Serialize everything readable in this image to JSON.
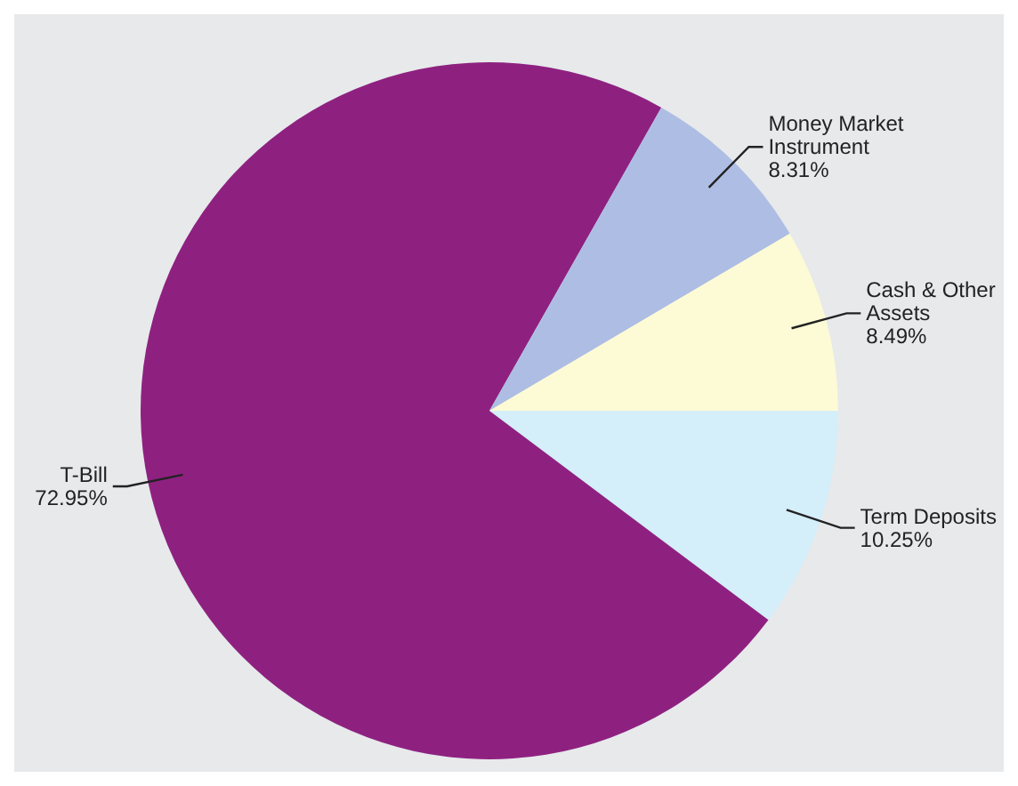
{
  "chart_data": {
    "type": "pie",
    "categories": [
      "Term Deposits",
      "T-Bill",
      "Money Market Instrument",
      "Cash & Other Assets"
    ],
    "values": [
      10.25,
      72.95,
      8.31,
      8.49
    ],
    "colors": [
      "#d4eefa",
      "#8e2180",
      "#aebde3",
      "#fdfbd5"
    ],
    "value_labels": [
      "10.25%",
      "72.95%",
      "8.31%",
      "8.49%"
    ]
  }
}
